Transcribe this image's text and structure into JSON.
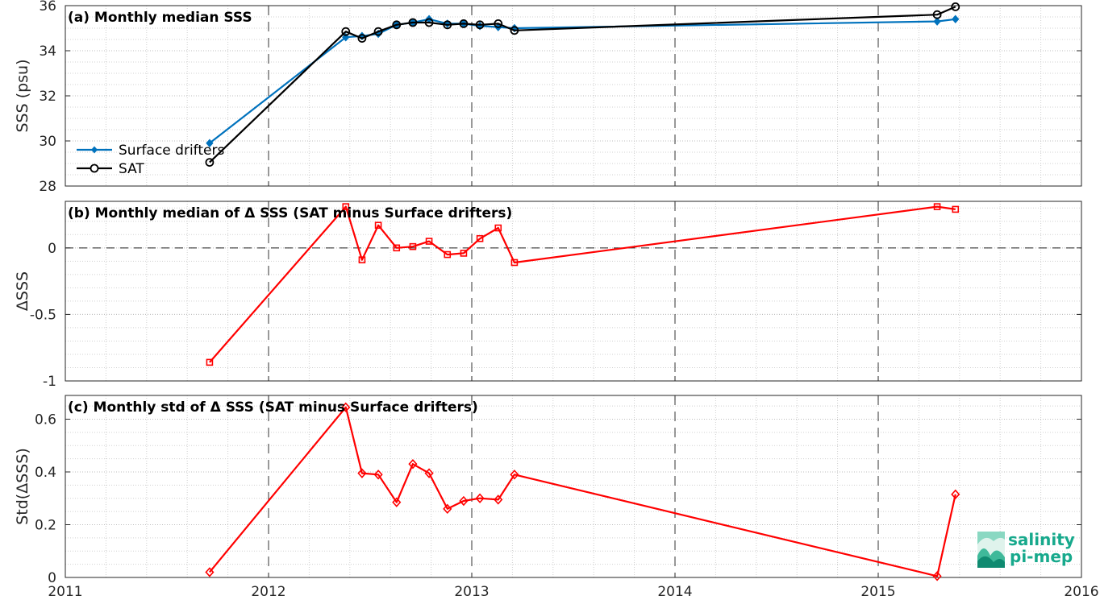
{
  "chart_data": [
    {
      "type": "line",
      "title": "(a) Monthly median SSS",
      "xlabel": "",
      "ylabel": "SSS (psu)",
      "xlim": [
        2011,
        2016
      ],
      "ylim": [
        28,
        36
      ],
      "yticks": [
        28,
        30,
        32,
        34,
        36
      ],
      "grid": true,
      "legend_position": "left",
      "series": [
        {
          "name": "Surface drifters",
          "color": "#0072BD",
          "marker": "diamond-filled",
          "x": [
            2011.71,
            2012.38,
            2012.46,
            2012.54,
            2012.63,
            2012.71,
            2012.79,
            2012.88,
            2012.96,
            2013.04,
            2013.13,
            2013.21,
            2015.29,
            2015.38
          ],
          "y": [
            29.9,
            34.6,
            34.65,
            34.75,
            35.15,
            35.25,
            35.4,
            35.2,
            35.2,
            35.1,
            35.05,
            35.0,
            35.3,
            35.4
          ]
        },
        {
          "name": "SAT",
          "color": "#000000",
          "marker": "circle-open",
          "x": [
            2011.71,
            2012.38,
            2012.46,
            2012.54,
            2012.63,
            2012.71,
            2012.79,
            2012.88,
            2012.96,
            2013.04,
            2013.13,
            2013.21,
            2015.29,
            2015.38
          ],
          "y": [
            29.05,
            34.85,
            34.55,
            34.85,
            35.15,
            35.25,
            35.25,
            35.15,
            35.2,
            35.15,
            35.2,
            34.9,
            35.6,
            35.95
          ]
        }
      ]
    },
    {
      "type": "line",
      "title": "(b) Monthly median of Δ SSS (SAT minus Surface drifters)",
      "xlabel": "",
      "ylabel": "ΔSSS",
      "xlim": [
        2011,
        2016
      ],
      "ylim": [
        -1,
        0.35
      ],
      "yticks": [
        -1,
        -0.5,
        0
      ],
      "grid": true,
      "zero_line": true,
      "series": [
        {
          "color": "#FF0000",
          "marker": "square-open",
          "x": [
            2011.71,
            2012.38,
            2012.46,
            2012.54,
            2012.63,
            2012.71,
            2012.79,
            2012.88,
            2012.96,
            2013.04,
            2013.13,
            2013.21,
            2015.29,
            2015.38
          ],
          "y": [
            -0.86,
            0.31,
            -0.09,
            0.17,
            0.0,
            0.01,
            0.05,
            -0.05,
            -0.04,
            0.07,
            0.15,
            -0.11,
            0.31,
            0.29
          ]
        }
      ]
    },
    {
      "type": "line",
      "title": "(c) Monthly std of Δ SSS (SAT minus Surface drifters)",
      "xlabel": "",
      "ylabel": "Std(ΔSSS)",
      "xlim": [
        2011,
        2016
      ],
      "ylim": [
        0,
        0.69
      ],
      "yticks": [
        0,
        0.2,
        0.4,
        0.6
      ],
      "grid": true,
      "series": [
        {
          "color": "#FF0000",
          "marker": "diamond-open",
          "x": [
            2011.71,
            2012.38,
            2012.46,
            2012.54,
            2012.63,
            2012.71,
            2012.79,
            2012.88,
            2012.96,
            2013.04,
            2013.13,
            2013.21,
            2015.29,
            2015.38
          ],
          "y": [
            0.02,
            0.645,
            0.395,
            0.39,
            0.285,
            0.43,
            0.395,
            0.26,
            0.29,
            0.3,
            0.295,
            0.39,
            0.005,
            0.315
          ]
        }
      ]
    }
  ],
  "xticks": [
    2011,
    2012,
    2013,
    2014,
    2015,
    2016
  ],
  "logo": {
    "line1": "salinity",
    "line2": "pi-mep",
    "color": "#17a98c",
    "icon": "wave-landscape-icon"
  }
}
